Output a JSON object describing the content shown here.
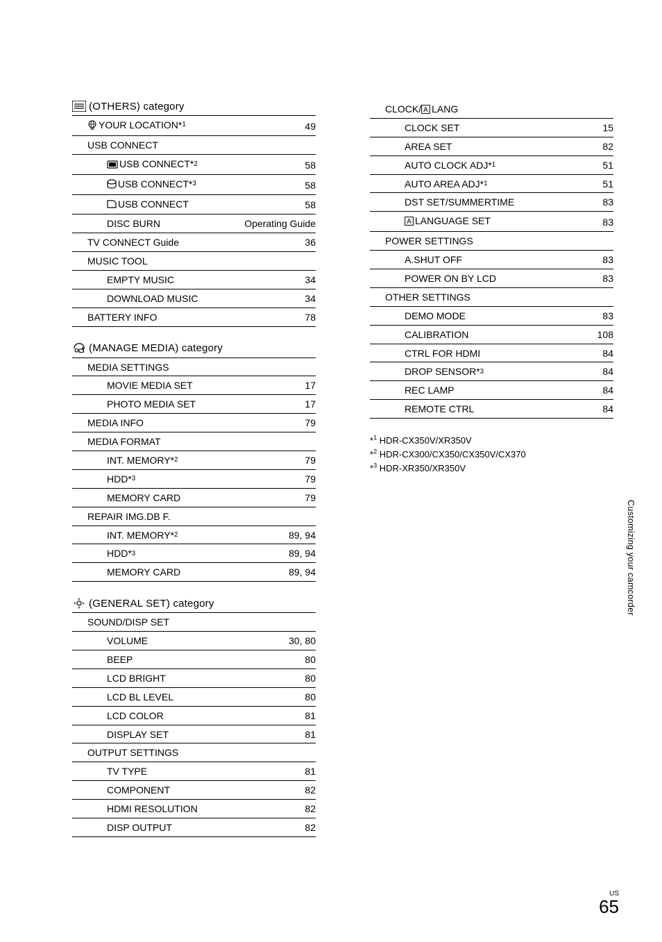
{
  "left_categories": [
    {
      "icon": "others",
      "title": "(OTHERS) category",
      "rows": [
        {
          "level": 1,
          "icon": "globe",
          "label": "YOUR LOCATION*",
          "sup": "1",
          "page": "49"
        },
        {
          "level": 1,
          "label": "USB CONNECT",
          "page": "",
          "noborder": false
        },
        {
          "level": 2,
          "icon": "intmem",
          "label": "USB CONNECT*",
          "sup": "2",
          "page": "58"
        },
        {
          "level": 2,
          "icon": "hdd",
          "label": "USB CONNECT*",
          "sup": "3",
          "page": "58"
        },
        {
          "level": 2,
          "icon": "card",
          "label": "USB CONNECT",
          "page": "58"
        },
        {
          "level": 2,
          "label": "DISC BURN",
          "page": "Operating Guide"
        },
        {
          "level": 1,
          "label": "TV CONNECT Guide",
          "page": "36"
        },
        {
          "level": 1,
          "label": "MUSIC TOOL",
          "page": ""
        },
        {
          "level": 2,
          "label": "EMPTY MUSIC",
          "page": "34"
        },
        {
          "level": 2,
          "label": "DOWNLOAD MUSIC",
          "page": "34"
        },
        {
          "level": 1,
          "label": "BATTERY INFO",
          "page": "78"
        }
      ]
    },
    {
      "icon": "manage",
      "title": "(MANAGE MEDIA) category",
      "rows": [
        {
          "level": 1,
          "label": "MEDIA SETTINGS",
          "page": ""
        },
        {
          "level": 2,
          "label": "MOVIE MEDIA SET",
          "page": "17"
        },
        {
          "level": 2,
          "label": "PHOTO MEDIA SET",
          "page": "17"
        },
        {
          "level": 1,
          "label": "MEDIA INFO",
          "page": "79"
        },
        {
          "level": 1,
          "label": "MEDIA FORMAT",
          "page": ""
        },
        {
          "level": 2,
          "label": "INT. MEMORY*",
          "sup": "2",
          "page": "79"
        },
        {
          "level": 2,
          "label": "HDD*",
          "sup": "3",
          "page": "79"
        },
        {
          "level": 2,
          "label": "MEMORY CARD",
          "page": "79"
        },
        {
          "level": 1,
          "label": "REPAIR IMG.DB F.",
          "page": ""
        },
        {
          "level": 2,
          "label": "INT. MEMORY*",
          "sup": "2",
          "page": "89, 94"
        },
        {
          "level": 2,
          "label": "HDD*",
          "sup": "3",
          "page": "89, 94"
        },
        {
          "level": 2,
          "label": "MEMORY CARD",
          "page": "89, 94"
        }
      ]
    },
    {
      "icon": "general",
      "title": "(GENERAL SET) category",
      "rows": [
        {
          "level": 1,
          "label": "SOUND/DISP SET",
          "page": ""
        },
        {
          "level": 2,
          "label": "VOLUME",
          "page": "30, 80"
        },
        {
          "level": 2,
          "label": "BEEP",
          "page": "80"
        },
        {
          "level": 2,
          "label": "LCD BRIGHT",
          "page": "80"
        },
        {
          "level": 2,
          "label": "LCD BL LEVEL",
          "page": "80"
        },
        {
          "level": 2,
          "label": "LCD COLOR",
          "page": "81"
        },
        {
          "level": 2,
          "label": "DISPLAY SET",
          "page": "81"
        },
        {
          "level": 1,
          "label": "OUTPUT SETTINGS",
          "page": ""
        },
        {
          "level": 2,
          "label": "TV TYPE",
          "page": "81"
        },
        {
          "level": 2,
          "label": "COMPONENT",
          "page": "82"
        },
        {
          "level": 2,
          "label": "HDMI RESOLUTION",
          "page": "82"
        },
        {
          "level": 2,
          "label": "DISP OUTPUT",
          "page": "82"
        }
      ]
    }
  ],
  "right_categories": [
    {
      "title_icon": "abox",
      "title_pre": "CLOCK/ ",
      "title_post": "LANG",
      "rows": [
        {
          "level": 2,
          "label": "CLOCK SET",
          "page": "15"
        },
        {
          "level": 2,
          "label": "AREA SET",
          "page": "82"
        },
        {
          "level": 2,
          "label": "AUTO CLOCK ADJ*",
          "sup": "1",
          "page": "51"
        },
        {
          "level": 2,
          "label": "AUTO AREA ADJ*",
          "sup": "1",
          "page": "51"
        },
        {
          "level": 2,
          "label": "DST SET/SUMMERTIME",
          "page": "83"
        },
        {
          "level": 2,
          "icon": "abox",
          "label": "LANGUAGE SET",
          "page": "83"
        },
        {
          "level": 1,
          "label": "POWER SETTINGS",
          "page": ""
        },
        {
          "level": 2,
          "label": "A.SHUT OFF",
          "page": "83"
        },
        {
          "level": 2,
          "label": "POWER ON BY LCD",
          "page": "83"
        },
        {
          "level": 1,
          "label": "OTHER SETTINGS",
          "page": ""
        },
        {
          "level": 2,
          "label": "DEMO MODE",
          "page": "83"
        },
        {
          "level": 2,
          "label": "CALIBRATION",
          "page": "108"
        },
        {
          "level": 2,
          "label": "CTRL FOR HDMI",
          "page": "84"
        },
        {
          "level": 2,
          "label": "DROP SENSOR*",
          "sup": "3",
          "page": "84"
        },
        {
          "level": 2,
          "label": "REC LAMP",
          "page": "84"
        },
        {
          "level": 2,
          "label": "REMOTE CTRL",
          "page": "84"
        }
      ]
    }
  ],
  "footnotes": [
    {
      "sup": "1",
      "text": "HDR-CX350V/XR350V"
    },
    {
      "sup": "2",
      "text": "HDR-CX300/CX350/CX350V/CX370"
    },
    {
      "sup": "3",
      "text": "HDR-XR350/XR350V"
    }
  ],
  "side_label": "Customizing your camcorder",
  "page_region": "US",
  "page_number": "65"
}
